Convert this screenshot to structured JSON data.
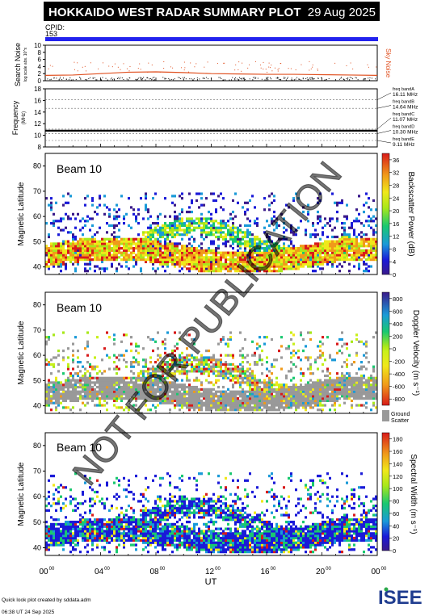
{
  "header": {
    "title": "HOKKAIDO WEST RADAR SUMMARY PLOT",
    "date": "29 Aug 2025",
    "cpid_label": "CPID:",
    "cpid_value": "153"
  },
  "footer": {
    "created_by": "Quick look plot created by sddata.adm",
    "created_at": "06:38 UT 24 Sep 2025",
    "logo_text": "ISEE"
  },
  "watermark": "NOT FOR PUBLICATION",
  "colors": {
    "title_bar": "#000000",
    "cpid_bar": "#2222ee",
    "sky_noise": "#e05020",
    "ground_scatter": "#999999"
  },
  "chart_data": [
    {
      "type": "line",
      "panel": "noise",
      "ylabel": "Search Noise",
      "ylabel_units": "log scale abs. 10^x",
      "right_label": "Sky Noise",
      "ylim": [
        0,
        10
      ],
      "yticks": [
        0,
        2,
        4,
        6,
        8,
        10
      ],
      "x": [
        0,
        2,
        4,
        6,
        8,
        10,
        12,
        14,
        16,
        18,
        20,
        22,
        24
      ],
      "series": [
        {
          "name": "Sky Noise",
          "values": [
            1.5,
            1.6,
            2.0,
            2.4,
            2.5,
            2.3,
            2.0,
            1.9,
            1.8,
            1.8,
            1.7,
            1.6,
            1.5
          ]
        }
      ]
    },
    {
      "type": "line",
      "panel": "frequency",
      "ylabel": "Frequency",
      "ylabel_units": "(MHz)",
      "ylim": [
        8,
        18
      ],
      "yticks": [
        8,
        10,
        12,
        14,
        16,
        18
      ],
      "bands": [
        {
          "label": "freq bandA",
          "value": "16.11 MHz"
        },
        {
          "label": "freq bandB",
          "value": "14.64 MHz"
        },
        {
          "label": "freq bandC",
          "value": "11.07 MHz"
        },
        {
          "label": "freq bandD",
          "value": "10.30 MHz"
        },
        {
          "label": "freq bandE",
          "value": "9.11 MHz"
        }
      ],
      "series": [
        {
          "name": "operating frequency",
          "values": [
            10.8
          ]
        }
      ]
    },
    {
      "type": "heatmap",
      "panel": "power",
      "beam_label": "Beam 10",
      "ylabel": "Magnetic Latitude",
      "ylim": [
        37,
        85
      ],
      "yticks": [
        40,
        50,
        60,
        70,
        80
      ],
      "colorbar_label": "Backscatter Power (dB)",
      "colorbar_ticks": [
        0,
        4,
        8,
        12,
        16,
        20,
        24,
        28,
        32,
        36
      ],
      "colorbar_range": [
        0,
        38
      ]
    },
    {
      "type": "heatmap",
      "panel": "velocity",
      "beam_label": "Beam 10",
      "ylabel": "Magnetic Latitude",
      "ylim": [
        37,
        85
      ],
      "yticks": [
        40,
        50,
        60,
        70,
        80
      ],
      "colorbar_label": "Doppler Velocity (m s⁻¹)",
      "colorbar_ticks": [
        800,
        600,
        400,
        200,
        0,
        -200,
        -400,
        -600,
        -800
      ],
      "colorbar_range": [
        -900,
        900
      ],
      "extra_legend": [
        "Ground",
        "Scatter"
      ]
    },
    {
      "type": "heatmap",
      "panel": "width",
      "beam_label": "Beam 10",
      "ylabel": "Magnetic Latitude",
      "ylim": [
        37,
        85
      ],
      "yticks": [
        40,
        50,
        60,
        70,
        80
      ],
      "colorbar_label": "Spectral Width (m s⁻¹)",
      "colorbar_ticks": [
        180,
        160,
        140,
        120,
        100,
        80,
        60,
        40,
        20,
        0
      ],
      "colorbar_range": [
        0,
        190
      ]
    }
  ],
  "xaxis": {
    "label": "UT",
    "ticks": [
      {
        "h": 0,
        "base": "00",
        "sup": "00"
      },
      {
        "h": 4,
        "base": "04",
        "sup": "00"
      },
      {
        "h": 8,
        "base": "08",
        "sup": "00"
      },
      {
        "h": 12,
        "base": "12",
        "sup": "00"
      },
      {
        "h": 16,
        "base": "16",
        "sup": "00"
      },
      {
        "h": 20,
        "base": "20",
        "sup": "00"
      },
      {
        "h": 24,
        "base": "00",
        "sup": "00"
      }
    ]
  }
}
